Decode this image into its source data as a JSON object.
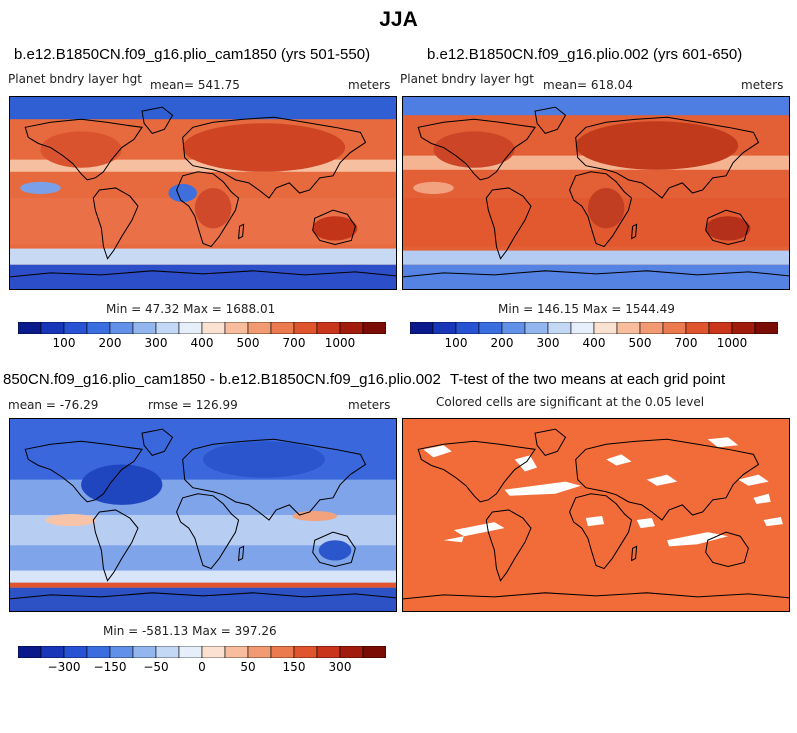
{
  "title": "JJA",
  "panels": {
    "p1": {
      "title": "b.e12.B1850CN.f09_g16.plio_cam1850 (yrs 501-550)",
      "variable": "Planet bndry layer hgt",
      "mean": "mean= 541.75",
      "units": "meters",
      "minmax": "Min =  47.32 Max = 1688.01"
    },
    "p2": {
      "title": "b.e12.B1850CN.f09_g16.plio.002 (yrs 601-650)",
      "variable": "Planet bndry layer hgt",
      "mean": "mean= 618.04",
      "units": "meters",
      "minmax": "Min = 146.15 Max = 1544.49"
    },
    "p3": {
      "title": "850CN.f09_g16.plio_cam1850 - b.e12.B1850CN.f09_g16.plio.002",
      "mean": "mean = -76.29",
      "rmse": "rmse = 126.99",
      "units": "meters",
      "minmax": "Min = -581.13 Max = 397.26"
    },
    "p4": {
      "title": "T-test of the two means at each grid point",
      "subtitle": "Colored cells are significant at the 0.05 level"
    }
  },
  "colorbars": {
    "abs": {
      "colors": [
        "#0a1a8c",
        "#1737b8",
        "#2752d4",
        "#3a6ee0",
        "#6190e8",
        "#93b6ef",
        "#c3d8f5",
        "#e6eefa",
        "#fbe1d2",
        "#f7bd9c",
        "#f29b72",
        "#eb7a4f",
        "#e0552e",
        "#c8351a",
        "#a11c0c",
        "#7a0b05"
      ],
      "labels": [
        "100",
        "200",
        "300",
        "400",
        "500",
        "700",
        "1000"
      ]
    },
    "diff": {
      "colors": [
        "#0a1a8c",
        "#1737b8",
        "#2752d4",
        "#3a6ee0",
        "#6190e8",
        "#93b6ef",
        "#c3d8f5",
        "#e6eefa",
        "#fbe1d2",
        "#f7bd9c",
        "#f29b72",
        "#eb7a4f",
        "#e0552e",
        "#c8351a",
        "#a11c0c",
        "#7a0b05"
      ],
      "labels": [
        "−300",
        "−150",
        "−50",
        "0",
        "50",
        "150",
        "300"
      ]
    }
  },
  "chart_data": [
    {
      "type": "heatmap",
      "title": "b.e12.B1850CN.f09_g16.plio_cam1850 (yrs 501-550)",
      "variable": "Planet bndry layer hgt",
      "units": "meters",
      "mean": 541.75,
      "min": 47.32,
      "max": 1688.01,
      "colorbar_ticks": [
        100,
        200,
        300,
        400,
        500,
        700,
        1000
      ]
    },
    {
      "type": "heatmap",
      "title": "b.e12.B1850CN.f09_g16.plio.002 (yrs 601-650)",
      "variable": "Planet bndry layer hgt",
      "units": "meters",
      "mean": 618.04,
      "min": 146.15,
      "max": 1544.49,
      "colorbar_ticks": [
        100,
        200,
        300,
        400,
        500,
        700,
        1000
      ]
    },
    {
      "type": "heatmap",
      "title": "850CN.f09_g16.plio_cam1850 - b.e12.B1850CN.f09_g16.plio.002",
      "units": "meters",
      "mean": -76.29,
      "rmse": 126.99,
      "min": -581.13,
      "max": 397.26,
      "colorbar_ticks": [
        -300,
        -150,
        -50,
        0,
        50,
        150,
        300
      ]
    },
    {
      "type": "heatmap",
      "title": "T-test of the two means at each grid point",
      "subtitle": "Colored cells are significant at the 0.05 level",
      "significant_color": "#f26c3a"
    }
  ]
}
